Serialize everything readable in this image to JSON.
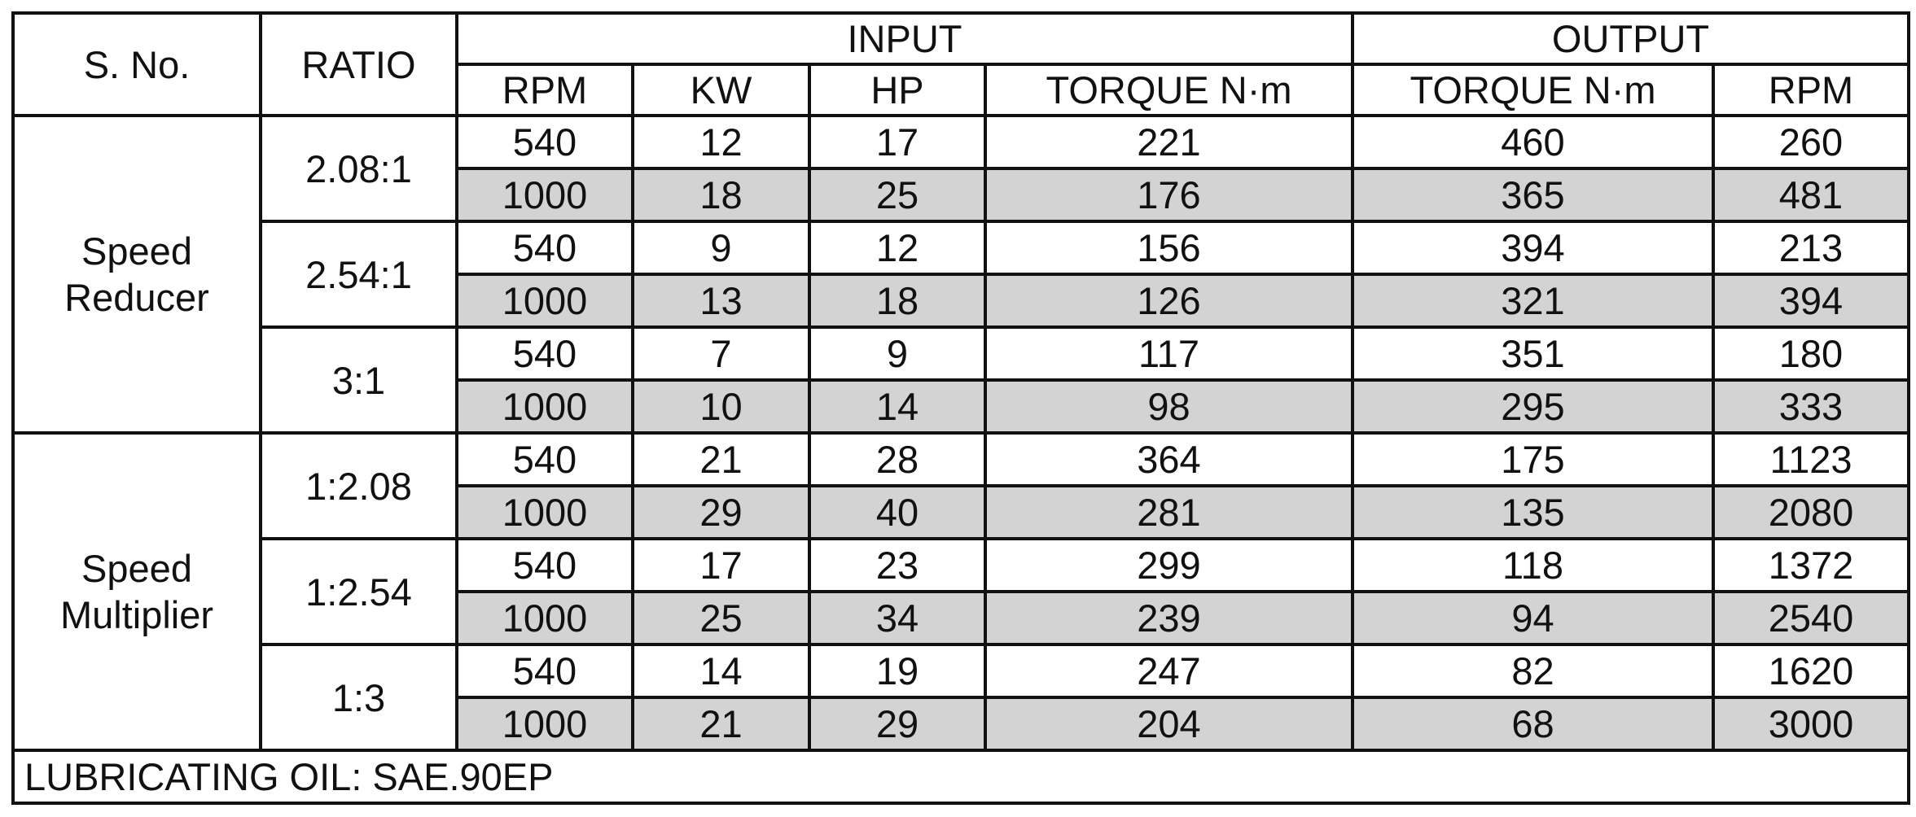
{
  "table": {
    "headers": {
      "sno": "S. No.",
      "ratio": "RATIO",
      "input": "INPUT",
      "output": "OUTPUT",
      "input_rpm": "RPM",
      "input_kw": "KW",
      "input_hp": "HP",
      "input_torque": "TORQUE N·m",
      "output_torque": "TORQUE N·m",
      "output_rpm": "RPM"
    },
    "groups": [
      {
        "name_line1": "Speed",
        "name_line2": "Reducer",
        "ratios": [
          {
            "ratio": "2.08:1",
            "rows": [
              {
                "rpm": "540",
                "kw": "12",
                "hp": "17",
                "torque_in": "221",
                "torque_out": "460",
                "rpm_out": "260"
              },
              {
                "rpm": "1000",
                "kw": "18",
                "hp": "25",
                "torque_in": "176",
                "torque_out": "365",
                "rpm_out": "481"
              }
            ]
          },
          {
            "ratio": "2.54:1",
            "rows": [
              {
                "rpm": "540",
                "kw": "9",
                "hp": "12",
                "torque_in": "156",
                "torque_out": "394",
                "rpm_out": "213"
              },
              {
                "rpm": "1000",
                "kw": "13",
                "hp": "18",
                "torque_in": "126",
                "torque_out": "321",
                "rpm_out": "394"
              }
            ]
          },
          {
            "ratio": "3:1",
            "rows": [
              {
                "rpm": "540",
                "kw": "7",
                "hp": "9",
                "torque_in": "117",
                "torque_out": "351",
                "rpm_out": "180"
              },
              {
                "rpm": "1000",
                "kw": "10",
                "hp": "14",
                "torque_in": "98",
                "torque_out": "295",
                "rpm_out": "333"
              }
            ]
          }
        ]
      },
      {
        "name_line1": "Speed",
        "name_line2": "Multiplier",
        "ratios": [
          {
            "ratio": "1:2.08",
            "rows": [
              {
                "rpm": "540",
                "kw": "21",
                "hp": "28",
                "torque_in": "364",
                "torque_out": "175",
                "rpm_out": "1123"
              },
              {
                "rpm": "1000",
                "kw": "29",
                "hp": "40",
                "torque_in": "281",
                "torque_out": "135",
                "rpm_out": "2080"
              }
            ]
          },
          {
            "ratio": "1:2.54",
            "rows": [
              {
                "rpm": "540",
                "kw": "17",
                "hp": "23",
                "torque_in": "299",
                "torque_out": "118",
                "rpm_out": "1372"
              },
              {
                "rpm": "1000",
                "kw": "25",
                "hp": "34",
                "torque_in": "239",
                "torque_out": "94",
                "rpm_out": "2540"
              }
            ]
          },
          {
            "ratio": "1:3",
            "rows": [
              {
                "rpm": "540",
                "kw": "14",
                "hp": "19",
                "torque_in": "247",
                "torque_out": "82",
                "rpm_out": "1620"
              },
              {
                "rpm": "1000",
                "kw": "21",
                "hp": "29",
                "torque_in": "204",
                "torque_out": "68",
                "rpm_out": "3000"
              }
            ]
          }
        ]
      }
    ],
    "footer": "LUBRICATING OIL: SAE.90EP",
    "colors": {
      "shade": "#d3d3d3",
      "border": "#111111"
    }
  }
}
